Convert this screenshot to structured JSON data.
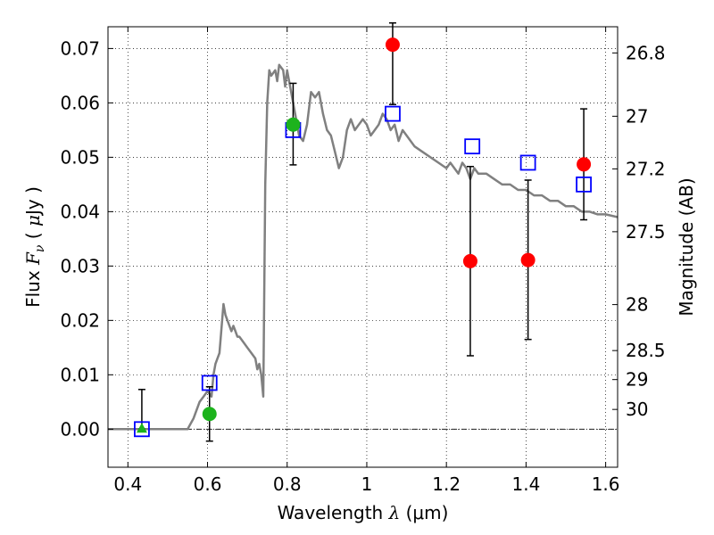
{
  "chart_data": {
    "type": "scatter",
    "title": "",
    "xlabel": "Wavelength  λ (μm)",
    "ylabel": "Flux  F_ν  ( μJy )",
    "ylabel_parts": {
      "prefix": "Flux  ",
      "sym": "F",
      "sub": "ν",
      "open": "  ( ",
      "mu": "μ",
      "unit": "Jy )"
    },
    "xlabel_parts": {
      "text": "Wavelength  ",
      "lambda": "λ",
      "unit": " (μm)"
    },
    "y2label": "Magnitude (AB)",
    "xlim": [
      0.35,
      1.63
    ],
    "ylim": [
      -0.007,
      0.074
    ],
    "grid": true,
    "x_ticks": [
      {
        "value": 0.4,
        "label": "0.4"
      },
      {
        "value": 0.6,
        "label": "0.6"
      },
      {
        "value": 0.8,
        "label": "0.8"
      },
      {
        "value": 1.0,
        "label": "1"
      },
      {
        "value": 1.2,
        "label": "1.2"
      },
      {
        "value": 1.4,
        "label": "1.4"
      },
      {
        "value": 1.6,
        "label": "1.6"
      }
    ],
    "y_ticks": [
      {
        "value": 0.0,
        "label": "0.00"
      },
      {
        "value": 0.01,
        "label": "0.01"
      },
      {
        "value": 0.02,
        "label": "0.02"
      },
      {
        "value": 0.03,
        "label": "0.03"
      },
      {
        "value": 0.04,
        "label": "0.04"
      },
      {
        "value": 0.05,
        "label": "0.05"
      },
      {
        "value": 0.06,
        "label": "0.06"
      },
      {
        "value": 0.07,
        "label": "0.07"
      }
    ],
    "y2_ticks": [
      {
        "value": 26.8,
        "label": "26.8"
      },
      {
        "value": 27.0,
        "label": "27"
      },
      {
        "value": 27.2,
        "label": "27.2"
      },
      {
        "value": 27.5,
        "label": "27.5"
      },
      {
        "value": 28.0,
        "label": "28"
      },
      {
        "value": 28.5,
        "label": "28.5"
      },
      {
        "value": 29.0,
        "label": "29"
      },
      {
        "value": 30.0,
        "label": "30"
      }
    ],
    "colors": {
      "template": "#808080",
      "red": "#ff0000",
      "green": "#1db31d",
      "blue": "#0000ff",
      "errorbar": "#000000",
      "zero_line": "#000000"
    },
    "series": [
      {
        "marker": "line",
        "color": "#808080",
        "x": [
          0.35,
          0.55,
          0.565,
          0.58,
          0.59,
          0.6,
          0.61,
          0.615,
          0.62,
          0.63,
          0.64,
          0.645,
          0.65,
          0.66,
          0.665,
          0.67,
          0.675,
          0.68,
          0.69,
          0.7,
          0.71,
          0.72,
          0.725,
          0.73,
          0.735,
          0.74,
          0.745,
          0.75,
          0.755,
          0.76,
          0.77,
          0.775,
          0.78,
          0.79,
          0.795,
          0.8,
          0.81,
          0.82,
          0.83,
          0.84,
          0.85,
          0.86,
          0.87,
          0.88,
          0.89,
          0.9,
          0.91,
          0.92,
          0.93,
          0.94,
          0.95,
          0.96,
          0.97,
          0.98,
          0.99,
          1.0,
          1.01,
          1.02,
          1.03,
          1.04,
          1.05,
          1.06,
          1.07,
          1.08,
          1.09,
          1.1,
          1.12,
          1.14,
          1.16,
          1.18,
          1.2,
          1.21,
          1.22,
          1.23,
          1.24,
          1.25,
          1.26,
          1.27,
          1.28,
          1.3,
          1.32,
          1.34,
          1.36,
          1.38,
          1.4,
          1.42,
          1.44,
          1.46,
          1.48,
          1.5,
          1.52,
          1.54,
          1.56,
          1.58,
          1.6,
          1.63
        ],
        "y": [
          0.0,
          0.0,
          0.002,
          0.005,
          0.006,
          0.007,
          0.006,
          0.01,
          0.012,
          0.014,
          0.023,
          0.021,
          0.02,
          0.018,
          0.019,
          0.018,
          0.017,
          0.017,
          0.016,
          0.015,
          0.014,
          0.013,
          0.011,
          0.012,
          0.01,
          0.006,
          0.045,
          0.06,
          0.066,
          0.065,
          0.066,
          0.064,
          0.067,
          0.066,
          0.063,
          0.066,
          0.062,
          0.058,
          0.054,
          0.053,
          0.056,
          0.062,
          0.061,
          0.062,
          0.058,
          0.055,
          0.054,
          0.051,
          0.048,
          0.05,
          0.055,
          0.057,
          0.055,
          0.056,
          0.057,
          0.056,
          0.054,
          0.055,
          0.056,
          0.058,
          0.057,
          0.055,
          0.056,
          0.053,
          0.055,
          0.054,
          0.052,
          0.051,
          0.05,
          0.049,
          0.048,
          0.049,
          0.048,
          0.047,
          0.049,
          0.048,
          0.046,
          0.048,
          0.047,
          0.047,
          0.046,
          0.045,
          0.045,
          0.044,
          0.044,
          0.043,
          0.043,
          0.042,
          0.042,
          0.041,
          0.041,
          0.04,
          0.04,
          0.0395,
          0.0395,
          0.039
        ]
      },
      {
        "marker": "square",
        "color": "#0000ff",
        "x": [
          0.435,
          0.605,
          0.815,
          1.065,
          1.265,
          1.405,
          1.545
        ],
        "y": [
          0.0,
          0.0085,
          0.055,
          0.058,
          0.052,
          0.049,
          0.045
        ]
      },
      {
        "marker": "circle",
        "color": "#ff0000",
        "x": [
          1.065,
          1.26,
          1.405,
          1.545
        ],
        "y": [
          0.0707,
          0.0309,
          0.0311,
          0.0487
        ],
        "err_low": [
          0.0597,
          0.0135,
          0.0165,
          0.0385
        ],
        "err_high": [
          0.0747,
          0.0483,
          0.0458,
          0.0589
        ]
      },
      {
        "marker": "circle",
        "color": "#1db31d",
        "x": [
          0.605,
          0.815
        ],
        "y": [
          0.0028,
          0.056
        ],
        "err_low": [
          -0.0022,
          0.0486
        ],
        "err_high": [
          0.0078,
          0.0636
        ]
      },
      {
        "marker": "triangle",
        "color": "#1db31d",
        "x": [
          0.435
        ],
        "y": [
          0.0
        ],
        "err_low": [
          0.0
        ],
        "err_high": [
          0.0073
        ]
      }
    ]
  }
}
